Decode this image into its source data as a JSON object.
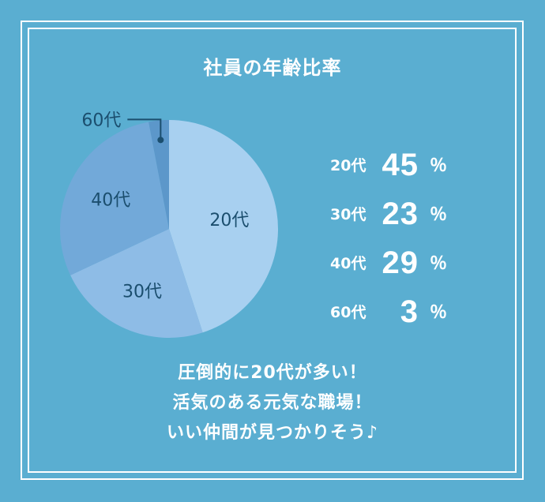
{
  "chart_data": {
    "type": "pie",
    "title": "社員の年齢比率",
    "slices": [
      {
        "label": "20代",
        "value": 45,
        "color": "#a8d0f0"
      },
      {
        "label": "30代",
        "value": 23,
        "color": "#8ebce6"
      },
      {
        "label": "40代",
        "value": 29,
        "color": "#72a9d9"
      },
      {
        "label": "60代",
        "value": 3,
        "color": "#5c97ca"
      }
    ],
    "label_color": "#1b4e6e"
  },
  "stats": [
    {
      "label": "20代",
      "value": "45",
      "unit": "％"
    },
    {
      "label": "30代",
      "value": "23",
      "unit": "％"
    },
    {
      "label": "40代",
      "value": "29",
      "unit": "％"
    },
    {
      "label": "60代",
      "value": "3",
      "unit": "％"
    }
  ],
  "message": {
    "line1": "圧倒的に20代が多い！",
    "line2": "活気のある元気な職場！",
    "line3": "いい仲間が見つかりそう♪"
  },
  "colors": {
    "background": "#5aaed1",
    "frame": "#ffffff"
  }
}
